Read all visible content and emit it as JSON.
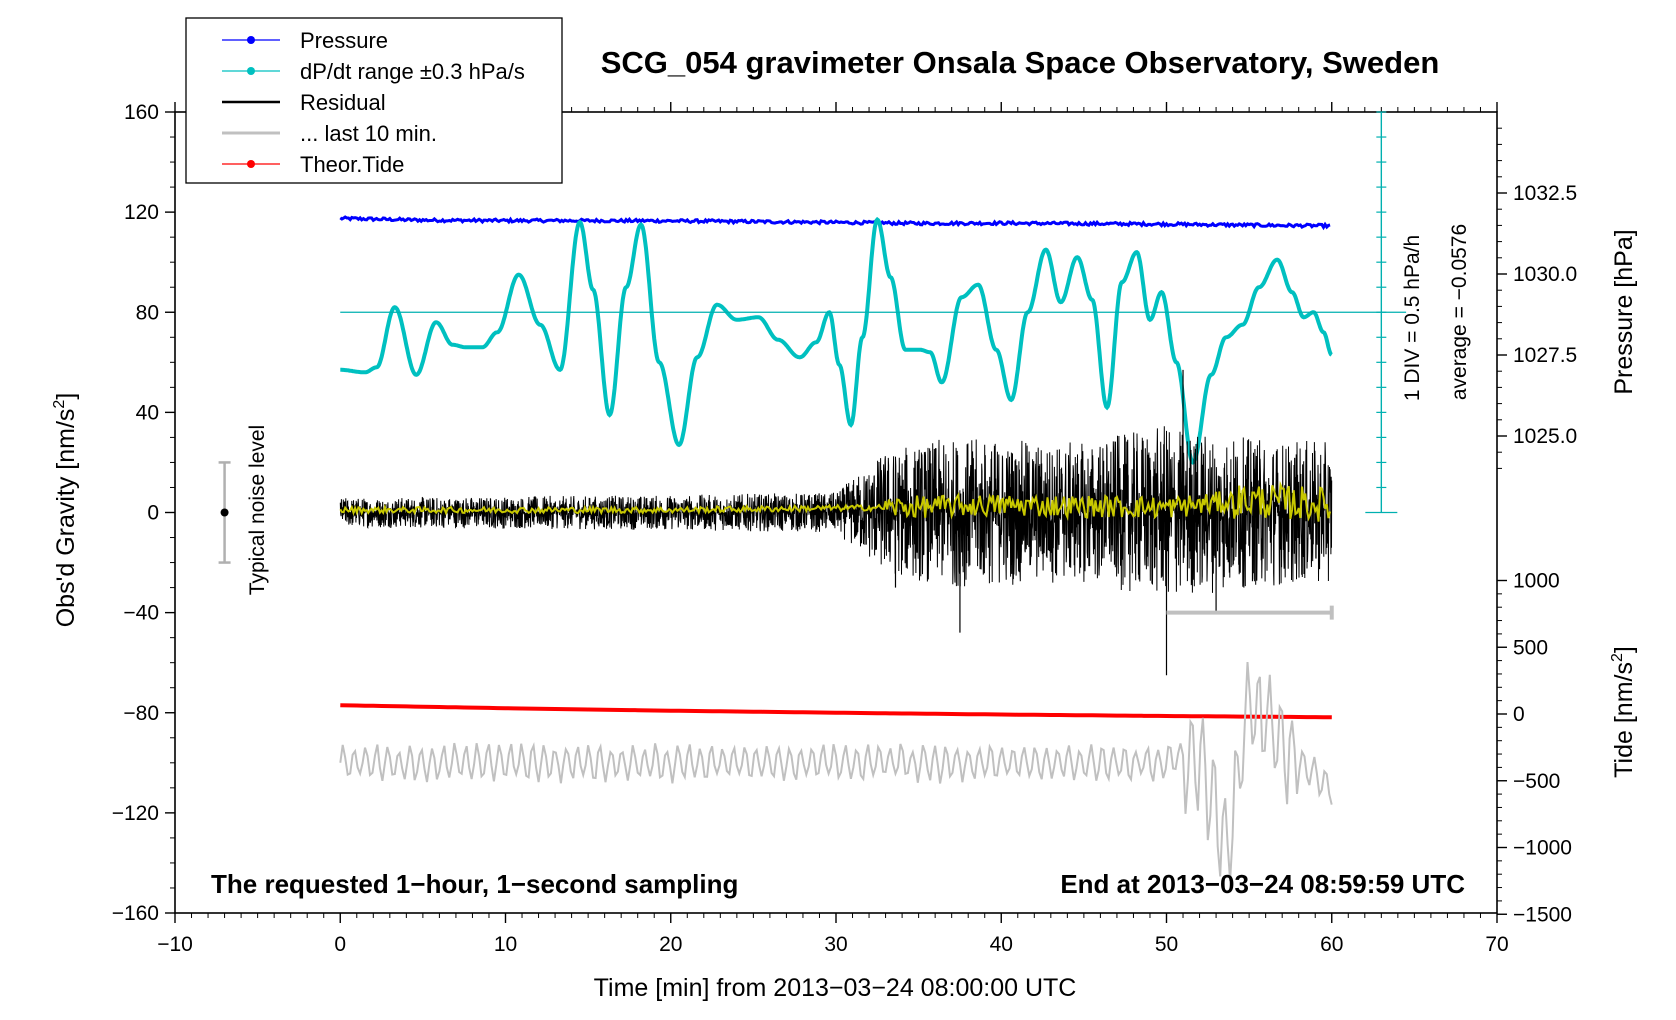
{
  "chart_data": {
    "type": "line",
    "title": "SCG_054 gravimeter Onsala Space Observatory, Sweden",
    "xlabel": "Time [min] from 2013−03−24 08:00:00 UTC",
    "ylabel_left": "Obs'd Gravity [nm/s",
    "ylabel_left_sup": "2",
    "ylabel_left_end": "]",
    "ylabel_right_top": "Pressure [hPa]",
    "ylabel_right_bottom": "Tide [nm/s",
    "ylabel_right_bottom_sup": "2",
    "ylabel_right_bottom_end": "]",
    "xlim": [
      -10,
      70
    ],
    "ylim": [
      -160,
      160
    ],
    "x_ticks": [
      "−10",
      "0",
      "10",
      "20",
      "30",
      "40",
      "50",
      "60",
      "70"
    ],
    "y_ticks": [
      "160",
      "120",
      "80",
      "40",
      "0",
      "−40",
      "−80",
      "−120",
      "−160"
    ],
    "pressure_ticks": [
      "1032.5",
      "1030.0",
      "1027.5",
      "1025.0"
    ],
    "pressure_tick_values": [
      1032.5,
      1030.0,
      1027.5,
      1025.0
    ],
    "tide_ticks": [
      "1000",
      "500",
      "0",
      "−500",
      "−1000",
      "−1500"
    ],
    "tide_tick_values": [
      1000,
      500,
      0,
      -500,
      -1000,
      -1500
    ],
    "legend": [
      {
        "label": "Pressure",
        "color": "#0000ff",
        "marker": true
      },
      {
        "label": "dP/dt range ±0.3 hPa/s",
        "color": "#00c0c0",
        "marker": true
      },
      {
        "label": "Residual",
        "color": "#000000",
        "marker": false
      },
      {
        "label": "... last 10 min.",
        "color": "#c0c0c0",
        "marker": false
      },
      {
        "label": "Theor.Tide",
        "color": "#ff0000",
        "marker": true
      }
    ],
    "annotations": {
      "noise_level": "Typical noise level",
      "div_label": "1 DIV = 0.5 hPa/h",
      "average_label": "average = −0.0576",
      "bottom_left": "The requested 1−hour, 1−second sampling",
      "bottom_right": "End at 2013−03−24 08:59:59 UTC"
    },
    "noise_bar": {
      "x": -7,
      "center": 0,
      "low": -20,
      "high": 20
    },
    "series": [
      {
        "name": "Pressure",
        "color": "#0000ff",
        "x": [
          0,
          5,
          10,
          15,
          20,
          25,
          30,
          35,
          40,
          45,
          50,
          55,
          60
        ],
        "values": [
          117.5,
          116.8,
          116.6,
          116.6,
          116.5,
          116.2,
          115.9,
          115.5,
          115.6,
          115.4,
          115.2,
          114.8,
          114.5
        ]
      },
      {
        "name": "dP/dt range",
        "color": "#00c0c0",
        "x": [
          0,
          1.5,
          2.2,
          3.3,
          4.6,
          5.8,
          6.8,
          7.6,
          8.6,
          9.5,
          10.8,
          12.1,
          13.3,
          14.5,
          15.3,
          16.3,
          17.3,
          18.2,
          19.3,
          20.5,
          21.6,
          22.8,
          24.0,
          25.3,
          26.5,
          27.8,
          28.8,
          29.6,
          30.2,
          30.9,
          31.6,
          32.5,
          33.3,
          34.2,
          35.1,
          35.7,
          36.4,
          37.6,
          38.6,
          39.7,
          40.6,
          41.6,
          42.7,
          43.6,
          44.6,
          45.5,
          46.4,
          47.3,
          48.2,
          49.0,
          49.7,
          50.6,
          51.6,
          52.7,
          53.6,
          54.6,
          55.6,
          56.7,
          57.6,
          58.3,
          58.9,
          59.5,
          60
        ],
        "values": [
          57,
          56,
          58,
          82,
          55,
          76,
          67,
          66,
          66,
          72,
          95,
          75,
          57,
          116,
          89,
          39,
          90,
          115,
          60,
          27,
          62,
          83,
          77,
          78,
          69,
          62,
          68,
          80,
          59,
          35,
          70,
          117,
          94,
          65,
          65,
          64,
          52,
          86,
          91,
          65,
          45,
          80,
          105,
          84,
          102,
          85,
          42,
          92,
          104,
          77,
          88,
          60,
          20,
          55,
          70,
          75,
          90,
          101,
          88,
          78,
          80,
          72,
          63
        ]
      },
      {
        "name": "Residual",
        "color": "#000000",
        "x": [
          0,
          10,
          20,
          30,
          33,
          33.6,
          37.5,
          40,
          45,
          50,
          51,
          53,
          55,
          60
        ],
        "values": [
          0,
          0,
          0,
          0,
          0,
          -30,
          -48,
          0,
          0,
          -65,
          57,
          -40,
          0,
          0
        ],
        "amplitude_envelope": {
          "x": [
            0,
            20,
            30,
            33,
            37,
            45,
            50,
            55,
            60
          ],
          "values": [
            6,
            7,
            8,
            25,
            30,
            28,
            35,
            30,
            28
          ]
        }
      },
      {
        "name": "Residual (smoothed)",
        "color": "#c8c800",
        "x": [
          0,
          20,
          33,
          40,
          50,
          55,
          60
        ],
        "values": [
          1,
          1,
          2,
          3,
          2,
          5,
          3
        ]
      },
      {
        "name": "Theor.Tide",
        "color": "#ff0000",
        "x": [
          0,
          10,
          20,
          30,
          40,
          50,
          60
        ],
        "values": [
          -77,
          -78.2,
          -79.2,
          -80,
          -80.7,
          -81.3,
          -81.8
        ]
      },
      {
        "name": "... last 10 min.",
        "color": "#c0c0c0",
        "x": [
          0,
          10,
          20,
          30,
          40,
          50,
          52,
          53.7,
          55,
          58,
          60
        ],
        "values": [
          -100,
          -100,
          -100,
          -100,
          -100,
          -100,
          -95,
          -135,
          -75,
          -100,
          -110
        ],
        "bracket": {
          "x_start": 50,
          "x_end": 60,
          "value": -40
        }
      }
    ],
    "div_scale": {
      "x": 63,
      "low": 0,
      "high": 160,
      "tick_step": 10
    }
  }
}
